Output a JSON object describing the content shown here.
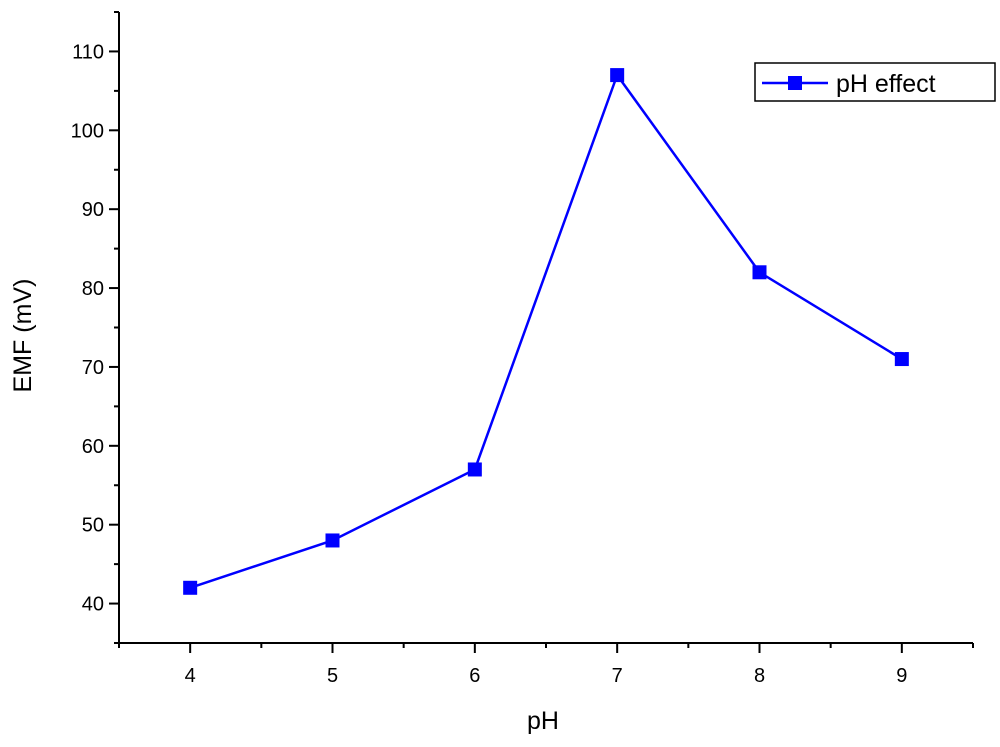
{
  "chart_data": {
    "type": "line",
    "xlabel": "pH",
    "ylabel": "EMF (mV)",
    "xlim": [
      3.5,
      9.5
    ],
    "ylim": [
      35,
      115
    ],
    "x_ticks": [
      4,
      5,
      6,
      7,
      8,
      9
    ],
    "y_ticks": [
      40,
      50,
      60,
      70,
      80,
      90,
      100,
      110
    ],
    "x_tick_labels": [
      "4",
      "5",
      "6",
      "7",
      "8",
      "9"
    ],
    "y_tick_labels": [
      "40",
      "50",
      "60",
      "70",
      "80",
      "90",
      "100",
      "110"
    ],
    "legend": {
      "position": "top-right"
    },
    "series": [
      {
        "name": "pH effect",
        "color": "#0000ff",
        "marker": "square",
        "x": [
          4,
          5,
          6,
          7,
          8,
          9
        ],
        "y": [
          42,
          48,
          57,
          107,
          82,
          71
        ]
      }
    ]
  }
}
